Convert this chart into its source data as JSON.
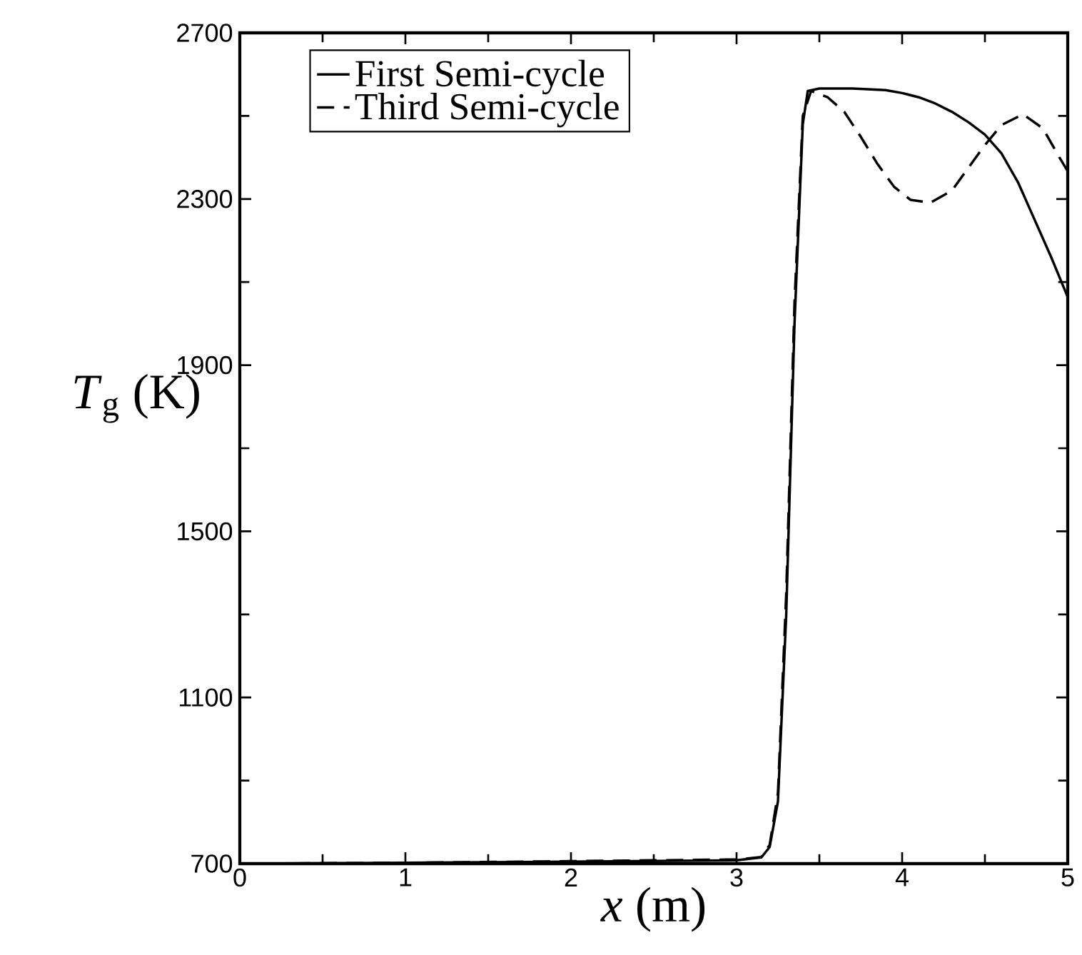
{
  "chart_data": {
    "type": "line",
    "xlabel": "*x* (m)",
    "ylabel": "*T*$_{g}$ (K)",
    "xlim": [
      0,
      5
    ],
    "ylim": [
      700,
      2700
    ],
    "xticks": [
      0,
      1,
      2,
      3,
      4,
      5
    ],
    "yticks": [
      700,
      1100,
      1500,
      1900,
      2300,
      2700
    ],
    "grid": false,
    "legend": "top left",
    "series": [
      {
        "name": "First Semi-cycle",
        "color": "#000000",
        "line_style": "solid",
        "x": [
          0,
          1,
          2,
          3,
          3.15,
          3.2,
          3.25,
          3.3,
          3.35,
          3.4,
          3.43,
          3.5,
          3.7,
          3.9,
          4.0,
          4.1,
          4.2,
          4.3,
          4.4,
          4.5,
          4.6,
          4.7,
          4.8,
          4.9,
          5.0
        ],
        "values": [
          700,
          702,
          705,
          708,
          715,
          740,
          850,
          1300,
          2000,
          2480,
          2560,
          2566,
          2566,
          2562,
          2555,
          2545,
          2530,
          2510,
          2485,
          2455,
          2410,
          2340,
          2250,
          2160,
          2064
        ]
      },
      {
        "name": "Third Semi-cycle",
        "color": "#000000",
        "line_style": "dashed",
        "x": [
          0,
          1,
          2,
          3,
          3.15,
          3.2,
          3.25,
          3.3,
          3.35,
          3.4,
          3.45,
          3.55,
          3.65,
          3.75,
          3.85,
          3.95,
          4.05,
          4.17,
          4.3,
          4.4,
          4.5,
          4.6,
          4.73,
          4.85,
          4.95,
          5.0
        ],
        "values": [
          700,
          702,
          706,
          710,
          716,
          745,
          870,
          1350,
          2050,
          2500,
          2560,
          2545,
          2510,
          2450,
          2385,
          2330,
          2298,
          2291,
          2320,
          2375,
          2430,
          2478,
          2504,
          2470,
          2400,
          2367
        ]
      }
    ]
  }
}
